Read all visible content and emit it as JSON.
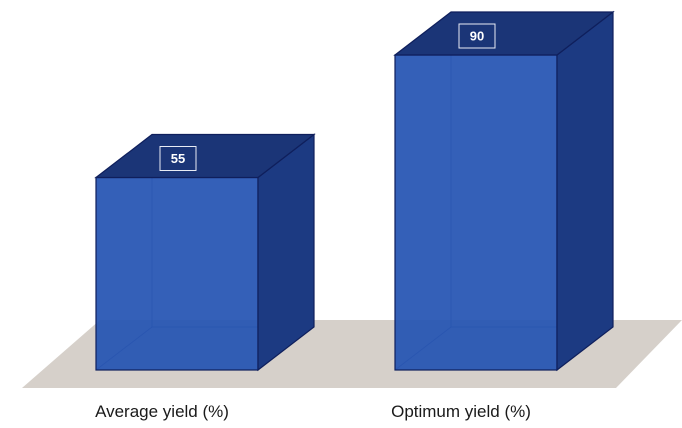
{
  "chart_data": {
    "type": "bar",
    "style": "3d",
    "categories": [
      "Average yield (%)",
      "Optimum yield (%)"
    ],
    "values": [
      55,
      90
    ],
    "data_labels": [
      "55",
      "90"
    ],
    "title": "",
    "xlabel": "",
    "ylabel": "",
    "ylim": [
      0,
      100
    ],
    "grid": false,
    "legend": "none",
    "colors": {
      "bar_front": "#2554b3",
      "bar_top": "#1b3577",
      "bar_side": "#1c3a82",
      "bar_edge": "#0f1f5c",
      "floor": "#d6d0ca",
      "label_box": "#1b3577"
    }
  }
}
